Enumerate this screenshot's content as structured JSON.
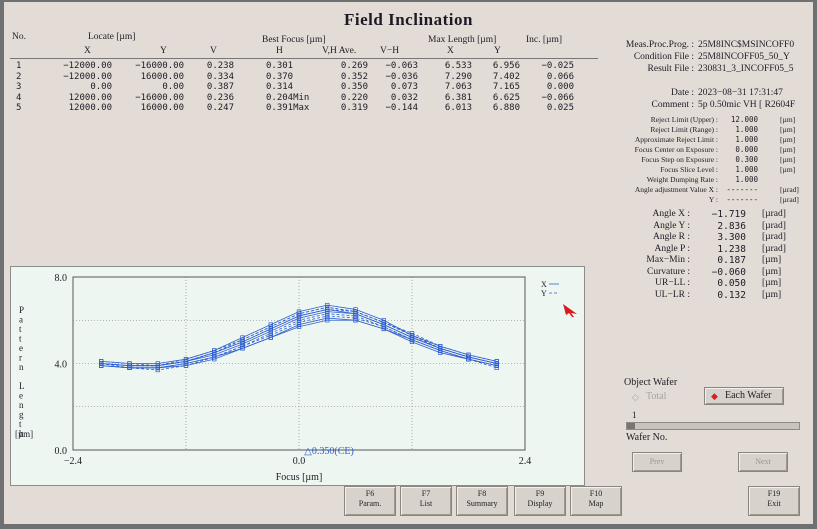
{
  "title": "Field Inclination",
  "table": {
    "no_header": "No.",
    "locate_header": "Locate [µm]",
    "best_focus_header": "Best Focus [µm]",
    "max_length_header": "Max Length [µm]",
    "inc_header": "Inc. [µm]",
    "sub_headers": [
      "X",
      "Y",
      "V",
      "H",
      "V,H Ave.",
      "V−H",
      "X",
      "Y"
    ],
    "rows": [
      {
        "no": "1",
        "x": "−12000.00",
        "y": "−16000.00",
        "v": "0.238",
        "h": "0.301",
        "ave": "0.269",
        "vh": "−0.063",
        "mlx": "6.533",
        "mly": "6.956",
        "inc": "−0.025"
      },
      {
        "no": "2",
        "x": "−12000.00",
        "y": "16000.00",
        "v": "0.334",
        "h": "0.370",
        "ave": "0.352",
        "vh": "−0.036",
        "mlx": "7.290",
        "mly": "7.402",
        "inc": "0.066"
      },
      {
        "no": "3",
        "x": "0.00",
        "y": "0.00",
        "v": "0.387",
        "h": "0.314",
        "ave": "0.350",
        "vh": "0.073",
        "mlx": "7.063",
        "mly": "7.165",
        "inc": "0.000"
      },
      {
        "no": "4",
        "x": "12000.00",
        "y": "−16000.00",
        "v": "0.236",
        "h": "0.204Min",
        "ave": "0.220",
        "vh": "0.032",
        "mlx": "6.381",
        "mly": "6.625",
        "inc": "−0.066"
      },
      {
        "no": "5",
        "x": "12000.00",
        "y": "16000.00",
        "v": "0.247",
        "h": "0.391Max",
        "ave": "0.319",
        "vh": "−0.144",
        "mlx": "6.013",
        "mly": "6.880",
        "inc": "0.025"
      }
    ]
  },
  "info": [
    {
      "label": "Meas.Proc.Prog. :",
      "value": "25M8INC$MSINCOFF0"
    },
    {
      "label": "Condition File :",
      "value": "25M8INCOFF05_50_Y"
    },
    {
      "label": "Result File :",
      "value": "230831_3_INCOFF05_5"
    },
    {
      "label": "Date :",
      "value": "2023−08−31 17:31:47"
    },
    {
      "label": "Comment :",
      "value": "5p 0.50mic VH [ R2604F"
    }
  ],
  "params": [
    {
      "label": "Reject Limit (Upper) :",
      "value": "12.000",
      "unit": "[µm]"
    },
    {
      "label": "Reject Limit (Range) :",
      "value": "1.000",
      "unit": "[µm]"
    },
    {
      "label": "Approximate Reject Limit :",
      "value": "1.000",
      "unit": "[µm]"
    },
    {
      "label": "Focus Center on Exposure :",
      "value": "0.000",
      "unit": "[µm]"
    },
    {
      "label": "Focus Step on Exposure :",
      "value": "0.300",
      "unit": "[µm]"
    },
    {
      "label": "Focus Slice Level :",
      "value": "1.000",
      "unit": "[µm]"
    },
    {
      "label": "Weight Dumping Rate :",
      "value": "1.000",
      "unit": ""
    },
    {
      "label": "Angle adjustment Value X :",
      "value": "-------",
      "unit": "[µrad]"
    },
    {
      "label": "Y :",
      "value": "-------",
      "unit": "[µrad]"
    }
  ],
  "angles": [
    {
      "label": "Angle X :",
      "value": "−1.719",
      "unit": "[µrad]"
    },
    {
      "label": "Angle Y :",
      "value": "2.836",
      "unit": "[µrad]"
    },
    {
      "label": "Angle R :",
      "value": "3.300",
      "unit": "[µrad]"
    },
    {
      "label": "Angle P :",
      "value": "1.238",
      "unit": "[µrad]"
    },
    {
      "label": "Max−Min :",
      "value": "0.187",
      "unit": "[µm]"
    },
    {
      "label": "Curvature :",
      "value": "−0.060",
      "unit": "[µm]"
    },
    {
      "label": "UR−LL :",
      "value": "0.050",
      "unit": "[µm]"
    },
    {
      "label": "UL−LR :",
      "value": "0.132",
      "unit": "[µm]"
    }
  ],
  "object_wafer": {
    "label": "Object Wafer",
    "options": [
      "Total",
      "Each Wafer"
    ],
    "selected": "Each Wafer",
    "slider_value": "1",
    "wafer_no_label": "Wafer No."
  },
  "nav": {
    "prev": "Prev",
    "next": "Next"
  },
  "function_keys": [
    {
      "key": "F6",
      "label": "Param."
    },
    {
      "key": "F7",
      "label": "List"
    },
    {
      "key": "F8",
      "label": "Summary"
    },
    {
      "key": "F9",
      "label": "Display"
    },
    {
      "key": "F10",
      "label": "Map"
    },
    {
      "key": "F19",
      "label": "Exit"
    }
  ],
  "colors": {
    "plot_line": "#2f5fd0",
    "plot_bg": "#eef6f2",
    "screen_bg": "#e3dcd6",
    "each_wafer_marker": "#d82020"
  },
  "chart_data": {
    "type": "line",
    "ylabel": "Pattern Length",
    "yunit": "[µm]",
    "xlabel": "Focus [µm]",
    "xlim": [
      -2.4,
      2.4
    ],
    "ylim": [
      0.0,
      8.0
    ],
    "x_ticks": [
      "−2.4",
      "0.0",
      "2.4"
    ],
    "y_ticks": [
      "0.0",
      "4.0",
      "8.0"
    ],
    "center_annotation": "△0.350(CE)",
    "legend": [
      "X",
      "Y"
    ],
    "x": [
      -2.1,
      -1.8,
      -1.5,
      -1.2,
      -0.9,
      -0.6,
      -0.3,
      0.0,
      0.3,
      0.6,
      0.9,
      1.2,
      1.5,
      1.8,
      2.1
    ],
    "series": [
      {
        "values": [
          4.0,
          3.9,
          3.9,
          4.1,
          4.5,
          5.0,
          5.6,
          6.2,
          6.5,
          6.3,
          5.8,
          5.2,
          4.7,
          4.3,
          4.0
        ]
      },
      {
        "values": [
          4.0,
          3.8,
          3.8,
          4.0,
          4.3,
          4.8,
          5.4,
          6.0,
          6.3,
          6.2,
          5.7,
          5.1,
          4.6,
          4.2,
          3.9
        ]
      },
      {
        "values": [
          3.9,
          3.8,
          3.8,
          3.9,
          4.2,
          4.7,
          5.2,
          5.8,
          6.1,
          6.0,
          5.6,
          5.0,
          4.5,
          4.2,
          3.9
        ]
      },
      {
        "values": [
          4.0,
          3.9,
          3.9,
          4.2,
          4.6,
          5.1,
          5.7,
          6.3,
          6.6,
          6.4,
          5.9,
          5.3,
          4.7,
          4.3,
          4.0
        ]
      },
      {
        "values": [
          4.1,
          4.0,
          4.0,
          4.2,
          4.6,
          5.2,
          5.8,
          6.4,
          6.7,
          6.5,
          6.0,
          5.3,
          4.8,
          4.4,
          4.1
        ]
      },
      {
        "values": [
          3.9,
          3.8,
          3.7,
          3.9,
          4.3,
          4.8,
          5.3,
          5.9,
          6.2,
          6.1,
          5.7,
          5.1,
          4.6,
          4.2,
          3.8
        ]
      },
      {
        "values": [
          4.0,
          3.9,
          3.9,
          4.1,
          4.4,
          4.9,
          5.5,
          6.1,
          6.4,
          6.3,
          5.8,
          5.2,
          4.7,
          4.3,
          4.0
        ]
      },
      {
        "values": [
          4.1,
          4.0,
          3.9,
          4.1,
          4.5,
          5.0,
          5.6,
          6.2,
          6.5,
          6.4,
          5.9,
          5.4,
          4.8,
          4.4,
          4.1
        ]
      },
      {
        "values": [
          3.9,
          3.8,
          3.8,
          4.0,
          4.3,
          4.7,
          5.2,
          5.7,
          6.0,
          6.0,
          5.6,
          5.1,
          4.6,
          4.2,
          3.9
        ]
      },
      {
        "values": [
          4.0,
          3.9,
          3.9,
          4.1,
          4.5,
          5.1,
          5.7,
          6.3,
          6.6,
          6.4,
          5.9,
          5.3,
          4.7,
          4.3,
          4.0
        ]
      }
    ]
  }
}
